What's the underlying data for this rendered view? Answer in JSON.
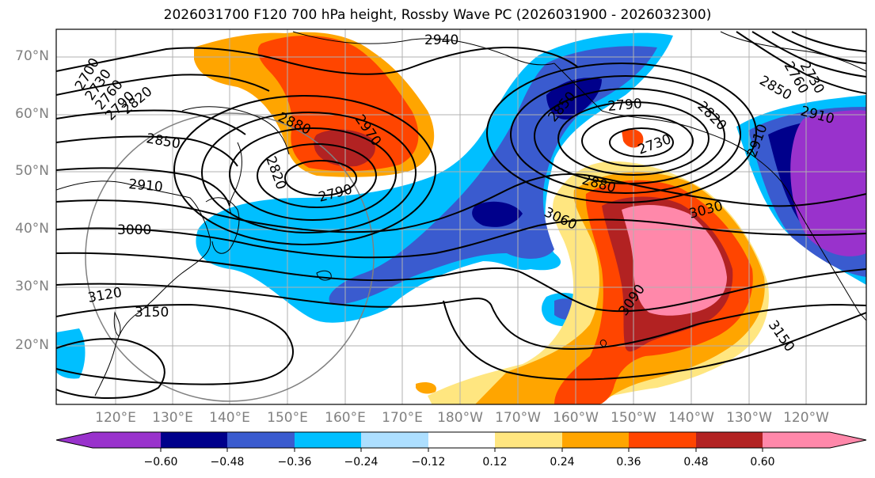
{
  "title": "2026031700 F120 700 hPa height, Rossby Wave PC (2026031900 - 2026032300)",
  "lat_labels": [
    "70°N",
    "60°N",
    "50°N",
    "40°N",
    "30°N",
    "20°N"
  ],
  "lon_labels": [
    "120°E",
    "130°E",
    "140°E",
    "150°E",
    "160°E",
    "170°E",
    "180°W",
    "170°W",
    "160°W",
    "150°W",
    "140°W",
    "130°W",
    "120°W"
  ],
  "contour_labels": [
    "2700",
    "2730",
    "2760",
    "2790",
    "2820",
    "2850",
    "2880",
    "2910",
    "2940",
    "2970",
    "3000",
    "3030",
    "3060",
    "3090",
    "3120",
    "3150",
    "2850",
    "2790",
    "2730",
    "2910",
    "2820",
    "2790",
    "2760",
    "2730",
    "2850",
    "2820",
    "2910",
    "2880",
    "3150"
  ],
  "colorbar": {
    "ticks": [
      "−0.60",
      "−0.48",
      "−0.36",
      "−0.24",
      "−0.12",
      "0.12",
      "0.24",
      "0.36",
      "0.48",
      "0.60"
    ],
    "colors": {
      "lt_m060": "#9932CC",
      "m060_m048": "#00008B",
      "m048_m036": "#3A5BCF",
      "m036_m024": "#00BFFF",
      "m024_m012": "#ADDFFF",
      "m012_p012": "#FFFFFF",
      "p012_p024": "#FFE680",
      "p024_p036": "#FFA500",
      "p036_p048": "#FF4500",
      "p048_p060": "#B22222",
      "gt_p060": "#FF88AA"
    }
  }
}
